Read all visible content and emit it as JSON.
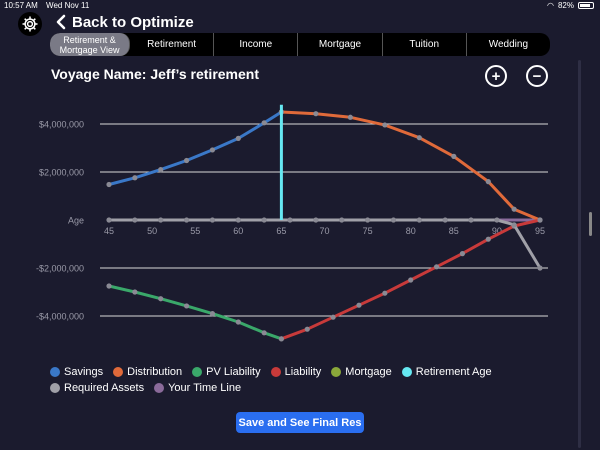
{
  "status": {
    "time": "10:57 AM",
    "date": "Wed Nov 11",
    "battery": "82%"
  },
  "nav": {
    "back_label": "Back to Optimize"
  },
  "tabs": [
    {
      "label": "Retirement & Mortgage View",
      "active": true
    },
    {
      "label": "Retirement",
      "active": false
    },
    {
      "label": "Income",
      "active": false
    },
    {
      "label": "Mortgage",
      "active": false
    },
    {
      "label": "Tuition",
      "active": false
    },
    {
      "label": "Wedding",
      "active": false
    }
  ],
  "voyage": {
    "title": "Voyage Name: Jeff’s retirement",
    "zoom_in": "+",
    "zoom_out": "−"
  },
  "chart_data": {
    "type": "line",
    "xlabel": "Age",
    "x_ticks": [
      45,
      50,
      55,
      60,
      65,
      70,
      75,
      80,
      85,
      90,
      95
    ],
    "y_ticks": [
      {
        "value": 4000000,
        "label": "$4,000,000"
      },
      {
        "value": 2000000,
        "label": "$2,000,000"
      },
      {
        "value": 0,
        "label": "Age"
      },
      {
        "value": -2000000,
        "label": "-$2,000,000"
      },
      {
        "value": -4000000,
        "label": "-$4,000,000"
      }
    ],
    "xlim": [
      45,
      95
    ],
    "ylim": [
      -5000000,
      5000000
    ],
    "retirement_age": 65,
    "series": [
      {
        "name": "Savings",
        "color": "#3a78c8",
        "points": [
          [
            45,
            1480000
          ],
          [
            48,
            1760000
          ],
          [
            51,
            2100000
          ],
          [
            54,
            2480000
          ],
          [
            57,
            2920000
          ],
          [
            60,
            3400000
          ],
          [
            63,
            4050000
          ],
          [
            65,
            4500000
          ]
        ]
      },
      {
        "name": "Distribution",
        "color": "#e06a3a",
        "points": [
          [
            65,
            4500000
          ],
          [
            69,
            4430000
          ],
          [
            73,
            4280000
          ],
          [
            77,
            3960000
          ],
          [
            81,
            3430000
          ],
          [
            85,
            2650000
          ],
          [
            89,
            1600000
          ],
          [
            92,
            450000
          ],
          [
            95,
            0
          ]
        ]
      },
      {
        "name": "PV Liability",
        "color": "#3aa86a",
        "points": [
          [
            45,
            -2750000
          ],
          [
            48,
            -3000000
          ],
          [
            51,
            -3280000
          ],
          [
            54,
            -3580000
          ],
          [
            57,
            -3900000
          ],
          [
            60,
            -4250000
          ],
          [
            63,
            -4700000
          ],
          [
            65,
            -4950000
          ]
        ]
      },
      {
        "name": "Liability",
        "color": "#c83a3a",
        "points": [
          [
            65,
            -4950000
          ],
          [
            68,
            -4550000
          ],
          [
            71,
            -4050000
          ],
          [
            74,
            -3550000
          ],
          [
            77,
            -3050000
          ],
          [
            80,
            -2500000
          ],
          [
            83,
            -1950000
          ],
          [
            86,
            -1400000
          ],
          [
            89,
            -800000
          ],
          [
            92,
            -250000
          ],
          [
            95,
            0
          ]
        ]
      },
      {
        "name": "Mortgage",
        "color": "#8aa83a",
        "points": []
      },
      {
        "name": "Retirement Age",
        "color": "#66e8f2",
        "points": []
      },
      {
        "name": "Required Assets",
        "color": "#a0a0a8",
        "points": [
          [
            45,
            0
          ],
          [
            48,
            0
          ],
          [
            51,
            0
          ],
          [
            54,
            0
          ],
          [
            57,
            0
          ],
          [
            60,
            0
          ],
          [
            63,
            0
          ],
          [
            66,
            0
          ],
          [
            69,
            0
          ],
          [
            72,
            0
          ],
          [
            75,
            0
          ],
          [
            78,
            0
          ],
          [
            81,
            0
          ],
          [
            84,
            0
          ],
          [
            87,
            0
          ],
          [
            90,
            0
          ],
          [
            92,
            -200000
          ],
          [
            95,
            -2000000
          ]
        ]
      },
      {
        "name": "Your Time Line",
        "color": "#8a6a9a",
        "points": [
          [
            45,
            0
          ],
          [
            95,
            0
          ]
        ]
      }
    ]
  },
  "legend": [
    [
      {
        "label": "Savings",
        "color": "#3a78c8"
      },
      {
        "label": "Distribution",
        "color": "#e06a3a"
      },
      {
        "label": "PV Liability",
        "color": "#3aa86a"
      },
      {
        "label": "Liability",
        "color": "#c83a3a"
      },
      {
        "label": "Mortgage",
        "color": "#8aa83a"
      },
      {
        "label": "Retirement Age",
        "color": "#66e8f2"
      }
    ],
    [
      {
        "label": "Required Assets",
        "color": "#a0a0a8"
      },
      {
        "label": "Your Time Line",
        "color": "#8a6a9a"
      }
    ]
  ],
  "actions": {
    "save_label": "Save and See Final Res"
  }
}
